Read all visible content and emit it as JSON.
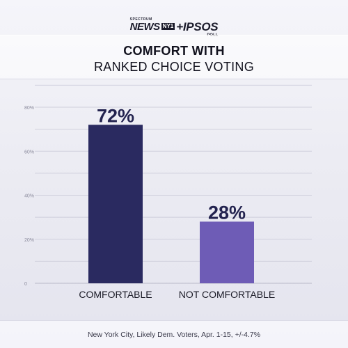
{
  "logo": {
    "spectrum": "SPECTRUM",
    "news": "NEWS",
    "ny": "NY1",
    "ipsos": "+IPSOS",
    "poll": "POLL"
  },
  "title": {
    "line1": "COMFORT WITH",
    "line2": "RANKED CHOICE VOTING"
  },
  "footer": {
    "source": "New York City, Likely Dem. Voters, Apr. 1-15, +/-4.7%"
  },
  "colors": {
    "comfortable": "#2a2a60",
    "not_comfortable": "#6e5cb6"
  },
  "chart_data": {
    "type": "bar",
    "categories": [
      "COMFORTABLE",
      "NOT COMFORTABLE"
    ],
    "values": [
      72,
      28
    ],
    "value_labels": [
      "72%",
      "28%"
    ],
    "yticks": [
      0,
      20,
      40,
      60,
      80
    ],
    "ytick_labels": [
      "0",
      "20%",
      "40%",
      "60%",
      "80%"
    ],
    "ylim": [
      0,
      90
    ],
    "grid": true
  }
}
